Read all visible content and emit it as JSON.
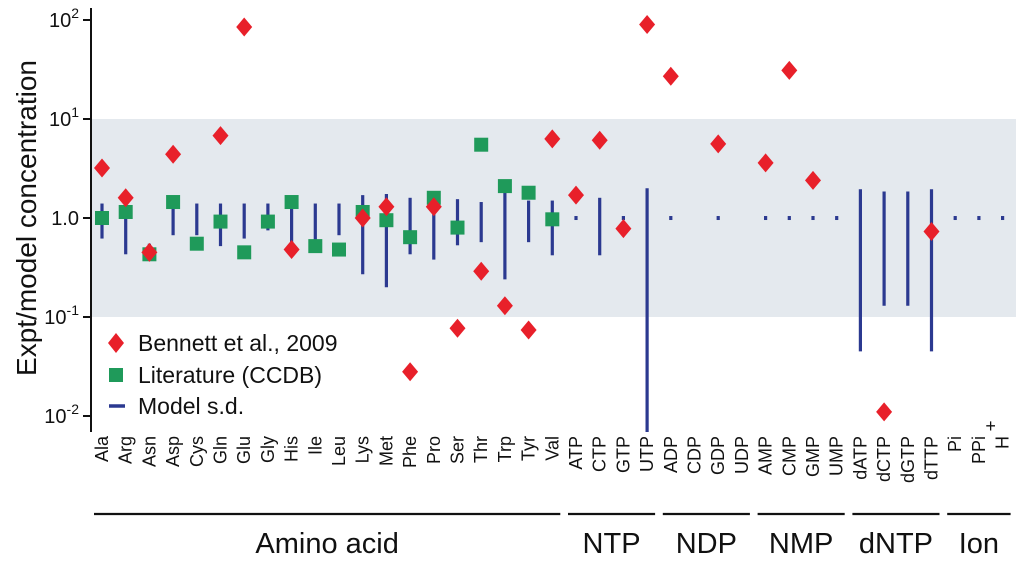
{
  "chart_data": {
    "type": "scatter",
    "y_scale": "log",
    "ylim": [
      0.01,
      100
    ],
    "ylabel": "Expt/model concentration",
    "y_ticks": [
      {
        "value": 100,
        "base": "10",
        "exp": "2"
      },
      {
        "value": 10,
        "base": "10",
        "exp": "1"
      },
      {
        "value": 1,
        "base": "1.0",
        "exp": ""
      },
      {
        "value": 0.1,
        "base": "10",
        "exp": "-1"
      },
      {
        "value": 0.01,
        "base": "10",
        "exp": "-2"
      }
    ],
    "shaded_band": [
      0.1,
      10
    ],
    "categories": [
      "Ala",
      "Arg",
      "Asn",
      "Asp",
      "Cys",
      "Gln",
      "Glu",
      "Gly",
      "His",
      "Ile",
      "Leu",
      "Lys",
      "Met",
      "Phe",
      "Pro",
      "Ser",
      "Thr",
      "Trp",
      "Tyr",
      "Val",
      "ATP",
      "CTP",
      "GTP",
      "UTP",
      "ADP",
      "CDP",
      "GDP",
      "UDP",
      "AMP",
      "CMP",
      "GMP",
      "UMP",
      "dATP",
      "dCTP",
      "dGTP",
      "dTTP",
      "Pi",
      "PPi",
      "H+"
    ],
    "category_labels": [
      "Ala",
      "Arg",
      "Asn",
      "Asp",
      "Cys",
      "Gln",
      "Glu",
      "Gly",
      "His",
      "Ile",
      "Leu",
      "Lys",
      "Met",
      "Phe",
      "Pro",
      "Ser",
      "Thr",
      "Trp",
      "Tyr",
      "Val",
      "ATP",
      "CTP",
      "GTP",
      "UTP",
      "ADP",
      "CDP",
      "GDP",
      "UDP",
      "AMP",
      "CMP",
      "GMP",
      "UMP",
      "dATP",
      "dCTP",
      "dGTP",
      "dTTP",
      "Pi",
      "PPi",
      "H"
    ],
    "groups": [
      {
        "label": "Amino acid",
        "start": 0,
        "end": 19
      },
      {
        "label": "NTP",
        "start": 20,
        "end": 23
      },
      {
        "label": "NDP",
        "start": 24,
        "end": 27
      },
      {
        "label": "NMP",
        "start": 28,
        "end": 31
      },
      {
        "label": "dNTP",
        "start": 32,
        "end": 35
      },
      {
        "label": "Ion",
        "start": 36,
        "end": 38
      }
    ],
    "series": [
      {
        "name": "Bennett et al., 2009",
        "marker": "diamond",
        "color": "#e8202a",
        "points": [
          {
            "x": "Ala",
            "y": 3.2
          },
          {
            "x": "Arg",
            "y": 1.6
          },
          {
            "x": "Asn",
            "y": 0.45
          },
          {
            "x": "Asp",
            "y": 4.4
          },
          {
            "x": "Gln",
            "y": 6.8
          },
          {
            "x": "Glu",
            "y": 85
          },
          {
            "x": "His",
            "y": 0.48
          },
          {
            "x": "Lys",
            "y": 1.0
          },
          {
            "x": "Met",
            "y": 1.3
          },
          {
            "x": "Phe",
            "y": 0.028
          },
          {
            "x": "Pro",
            "y": 1.3
          },
          {
            "x": "Ser",
            "y": 0.077
          },
          {
            "x": "Thr",
            "y": 0.29
          },
          {
            "x": "Trp",
            "y": 0.13
          },
          {
            "x": "Tyr",
            "y": 0.074
          },
          {
            "x": "Val",
            "y": 6.3
          },
          {
            "x": "ATP",
            "y": 1.7
          },
          {
            "x": "CTP",
            "y": 6.1
          },
          {
            "x": "GTP",
            "y": 0.78
          },
          {
            "x": "UTP",
            "y": 90
          },
          {
            "x": "ADP",
            "y": 27
          },
          {
            "x": "GDP",
            "y": 5.6
          },
          {
            "x": "AMP",
            "y": 3.6
          },
          {
            "x": "CMP",
            "y": 31
          },
          {
            "x": "GMP",
            "y": 2.4
          },
          {
            "x": "dCTP",
            "y": 0.011
          },
          {
            "x": "dTTP",
            "y": 0.73
          }
        ]
      },
      {
        "name": "Literature (CCDB)",
        "marker": "square",
        "color": "#1f9a5a",
        "points": [
          {
            "x": "Ala",
            "y": 1.0
          },
          {
            "x": "Arg",
            "y": 1.15
          },
          {
            "x": "Asn",
            "y": 0.43
          },
          {
            "x": "Asp",
            "y": 1.45
          },
          {
            "x": "Cys",
            "y": 0.55
          },
          {
            "x": "Gln",
            "y": 0.92
          },
          {
            "x": "Glu",
            "y": 0.45
          },
          {
            "x": "Gly",
            "y": 0.92
          },
          {
            "x": "His",
            "y": 1.45
          },
          {
            "x": "Ile",
            "y": 0.52
          },
          {
            "x": "Leu",
            "y": 0.48
          },
          {
            "x": "Lys",
            "y": 1.15
          },
          {
            "x": "Met",
            "y": 0.95
          },
          {
            "x": "Phe",
            "y": 0.64
          },
          {
            "x": "Pro",
            "y": 1.6
          },
          {
            "x": "Ser",
            "y": 0.8
          },
          {
            "x": "Thr",
            "y": 5.5
          },
          {
            "x": "Trp",
            "y": 2.1
          },
          {
            "x": "Tyr",
            "y": 1.8
          },
          {
            "x": "Val",
            "y": 0.97
          }
        ]
      },
      {
        "name": "Model s.d.",
        "marker": "vertical-bar",
        "color": "#2b3990",
        "ranges": [
          {
            "x": "Ala",
            "low": 0.62,
            "high": 1.4
          },
          {
            "x": "Arg",
            "low": 0.43,
            "high": 1.4
          },
          {
            "x": "Asn",
            "low": 0.4,
            "high": 0.55
          },
          {
            "x": "Asp",
            "low": 0.67,
            "high": 1.4
          },
          {
            "x": "Cys",
            "low": 0.67,
            "high": 1.4
          },
          {
            "x": "Gln",
            "low": 0.52,
            "high": 1.4
          },
          {
            "x": "Glu",
            "low": 0.62,
            "high": 1.4
          },
          {
            "x": "Gly",
            "low": 0.75,
            "high": 1.4
          },
          {
            "x": "His",
            "low": 0.45,
            "high": 1.55
          },
          {
            "x": "Ile",
            "low": 0.55,
            "high": 1.4
          },
          {
            "x": "Leu",
            "low": 0.67,
            "high": 1.4
          },
          {
            "x": "Lys",
            "low": 0.27,
            "high": 1.7
          },
          {
            "x": "Met",
            "low": 0.2,
            "high": 1.75
          },
          {
            "x": "Phe",
            "low": 0.43,
            "high": 1.6
          },
          {
            "x": "Pro",
            "low": 0.38,
            "high": 1.6
          },
          {
            "x": "Ser",
            "low": 0.53,
            "high": 1.55
          },
          {
            "x": "Thr",
            "low": 0.57,
            "high": 1.45
          },
          {
            "x": "Trp",
            "low": 0.24,
            "high": 1.9
          },
          {
            "x": "Tyr",
            "low": 0.57,
            "high": 1.5
          },
          {
            "x": "Val",
            "low": 0.42,
            "high": 1.5
          },
          {
            "x": "ATP",
            "low": 0.97,
            "high": 1.03
          },
          {
            "x": "CTP",
            "low": 0.42,
            "high": 1.6
          },
          {
            "x": "GTP",
            "low": 0.97,
            "high": 1.03
          },
          {
            "x": "UTP",
            "low": 0.0065,
            "high": 2.0
          },
          {
            "x": "ADP",
            "low": 0.97,
            "high": 1.03
          },
          {
            "x": "GDP",
            "low": 0.97,
            "high": 1.03
          },
          {
            "x": "AMP",
            "low": 0.97,
            "high": 1.03
          },
          {
            "x": "CMP",
            "low": 0.97,
            "high": 1.03
          },
          {
            "x": "GMP",
            "low": 0.97,
            "high": 1.03
          },
          {
            "x": "UMP",
            "low": 0.97,
            "high": 1.03
          },
          {
            "x": "dATP",
            "low": 0.045,
            "high": 1.95
          },
          {
            "x": "dCTP",
            "low": 0.13,
            "high": 1.85
          },
          {
            "x": "dGTP",
            "low": 0.13,
            "high": 1.85
          },
          {
            "x": "dTTP",
            "low": 0.045,
            "high": 1.95
          },
          {
            "x": "Pi",
            "low": 0.97,
            "high": 1.03
          },
          {
            "x": "PPi",
            "low": 0.97,
            "high": 1.03
          },
          {
            "x": "H+",
            "low": 0.97,
            "high": 1.03
          }
        ]
      }
    ],
    "legend": {
      "position": "bottom-left",
      "entries": [
        "Bennett et al., 2009",
        "Literature (CCDB)",
        "Model s.d."
      ]
    },
    "colors": {
      "band": "#e4e9ee",
      "axis": "#111111"
    }
  }
}
